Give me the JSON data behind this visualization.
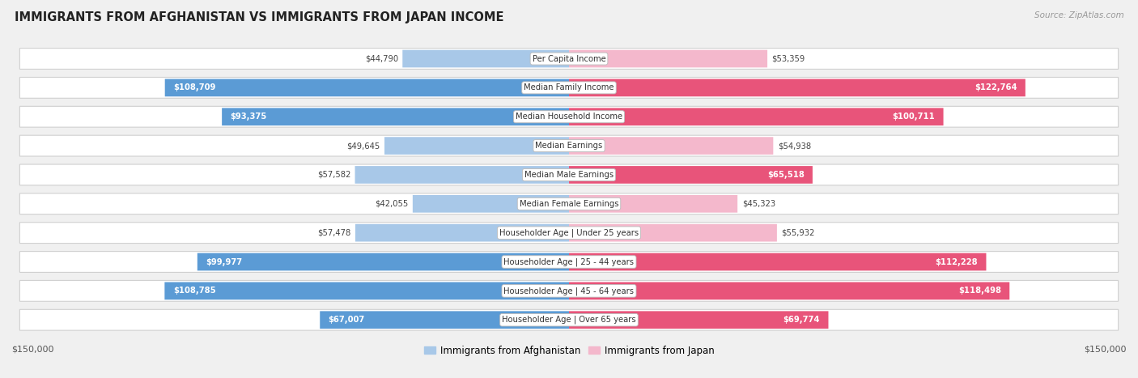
{
  "title": "IMMIGRANTS FROM AFGHANISTAN VS IMMIGRANTS FROM JAPAN INCOME",
  "source": "Source: ZipAtlas.com",
  "categories": [
    "Per Capita Income",
    "Median Family Income",
    "Median Household Income",
    "Median Earnings",
    "Median Male Earnings",
    "Median Female Earnings",
    "Householder Age | Under 25 years",
    "Householder Age | 25 - 44 years",
    "Householder Age | 45 - 64 years",
    "Householder Age | Over 65 years"
  ],
  "afghanistan_values": [
    44790,
    108709,
    93375,
    49645,
    57582,
    42055,
    57478,
    99977,
    108785,
    67007
  ],
  "japan_values": [
    53359,
    122764,
    100711,
    54938,
    65518,
    45323,
    55932,
    112228,
    118498,
    69774
  ],
  "afghanistan_labels": [
    "$44,790",
    "$108,709",
    "$93,375",
    "$49,645",
    "$57,582",
    "$42,055",
    "$57,478",
    "$99,977",
    "$108,785",
    "$67,007"
  ],
  "japan_labels": [
    "$53,359",
    "$122,764",
    "$100,711",
    "$54,938",
    "$65,518",
    "$45,323",
    "$55,932",
    "$112,228",
    "$118,498",
    "$69,774"
  ],
  "afg_color_light": "#a8c8e8",
  "afg_color_dark": "#5b9bd5",
  "jpn_color_light": "#f4b8cc",
  "jpn_color_dark": "#e8547a",
  "max_value": 150000,
  "legend_afghanistan": "Immigrants from Afghanistan",
  "legend_japan": "Immigrants from Japan",
  "background_color": "#f0f0f0",
  "row_background": "#ffffff",
  "inside_label_threshold": 0.42
}
